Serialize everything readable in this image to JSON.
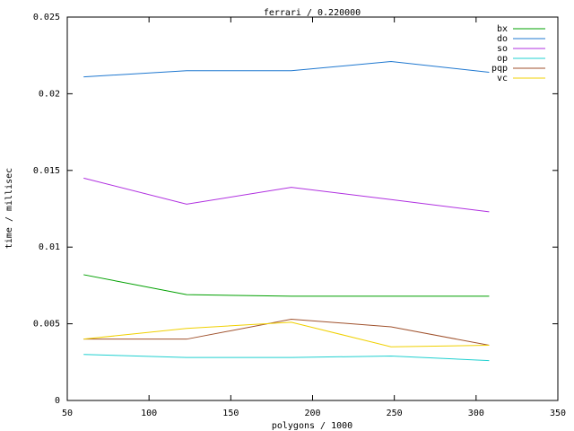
{
  "chart_data": {
    "type": "line",
    "title": "ferrari / 0.220000",
    "x_label": "polygons / 1000",
    "y_label": "time / millisec",
    "x": [
      60,
      123,
      187,
      248,
      308
    ],
    "xlim": [
      50,
      350
    ],
    "xticks": [
      50,
      100,
      150,
      200,
      250,
      300,
      350
    ],
    "ylim": [
      0,
      0.025
    ],
    "yticks": [
      0,
      0.005,
      0.01,
      0.015,
      0.02,
      0.025
    ],
    "legend": "top-right",
    "series": [
      {
        "name": "bx",
        "color": "#00a000",
        "values": [
          0.0082,
          0.0069,
          0.0068,
          0.0068,
          0.0068
        ]
      },
      {
        "name": "do",
        "color": "#1f78d0",
        "values": [
          0.0211,
          0.0215,
          0.0215,
          0.0221,
          0.0214
        ]
      },
      {
        "name": "so",
        "color": "#b030e0",
        "values": [
          0.0145,
          0.0128,
          0.0139,
          0.0131,
          0.0123
        ]
      },
      {
        "name": "op",
        "color": "#20d0d0",
        "values": [
          0.003,
          0.0028,
          0.0028,
          0.0029,
          0.0026
        ]
      },
      {
        "name": "pqp",
        "color": "#a0522d",
        "values": [
          0.004,
          0.004,
          0.0053,
          0.0048,
          0.0036
        ]
      },
      {
        "name": "vc",
        "color": "#f0d000",
        "values": [
          0.004,
          0.0047,
          0.0051,
          0.0035,
          0.0036
        ]
      }
    ]
  }
}
